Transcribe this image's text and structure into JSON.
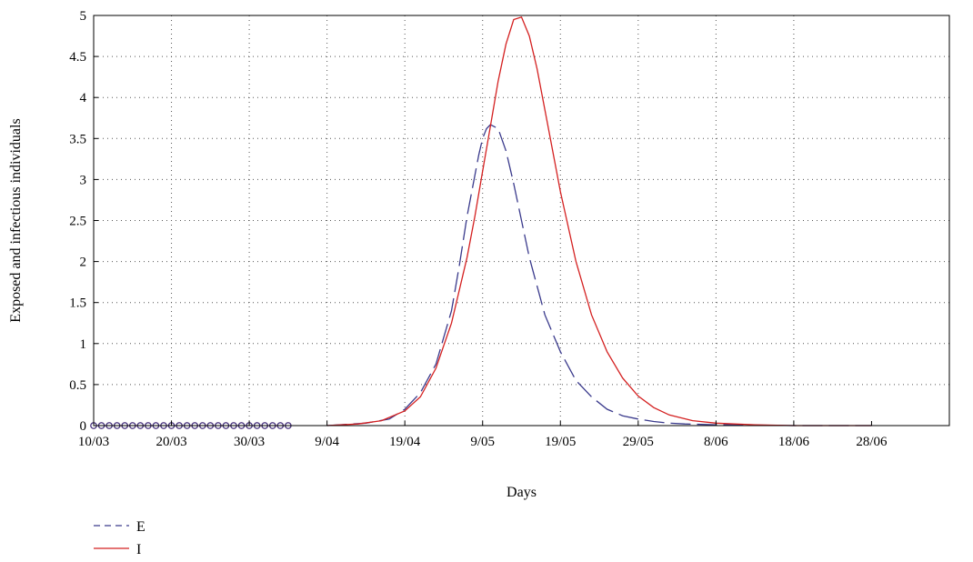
{
  "chart_data": {
    "type": "line",
    "xlabel": "Days",
    "ylabel": "Exposed and infectious individuals",
    "xlim": [
      0,
      110
    ],
    "ylim": [
      0,
      5
    ],
    "x_ticks": [
      {
        "x": 0,
        "label": "10/03"
      },
      {
        "x": 10,
        "label": "20/03"
      },
      {
        "x": 20,
        "label": "30/03"
      },
      {
        "x": 30,
        "label": "9/04"
      },
      {
        "x": 40,
        "label": "19/04"
      },
      {
        "x": 50,
        "label": "9/05"
      },
      {
        "x": 60,
        "label": "19/05"
      },
      {
        "x": 70,
        "label": "29/05"
      },
      {
        "x": 80,
        "label": "8/06"
      },
      {
        "x": 90,
        "label": "18/06"
      },
      {
        "x": 100,
        "label": "28/06"
      }
    ],
    "y_ticks": [
      {
        "y": 0,
        "label": "0"
      },
      {
        "y": 0.5,
        "label": "0.5"
      },
      {
        "y": 1,
        "label": "1"
      },
      {
        "y": 1.5,
        "label": "1.5"
      },
      {
        "y": 2,
        "label": "2"
      },
      {
        "y": 2.5,
        "label": "2.5"
      },
      {
        "y": 3,
        "label": "3"
      },
      {
        "y": 3.5,
        "label": "3.5"
      },
      {
        "y": 4,
        "label": "4"
      },
      {
        "y": 4.5,
        "label": "4.5"
      },
      {
        "y": 5,
        "label": "5"
      }
    ],
    "grid": true,
    "legend_position": "bottom-left",
    "series": [
      {
        "name": "E",
        "color": "#3a3a8c",
        "style": "dashed",
        "x": [
          30,
          35,
          38,
          40,
          42,
          44,
          46,
          47,
          48,
          49,
          49.5,
          50,
          50.5,
          51,
          52,
          53,
          54,
          56,
          58,
          60,
          62,
          64,
          66,
          68,
          70,
          72,
          74,
          76,
          80,
          85,
          90,
          95,
          100
        ],
        "y": [
          0.0,
          0.03,
          0.08,
          0.2,
          0.4,
          0.75,
          1.4,
          1.95,
          2.55,
          3.05,
          3.3,
          3.5,
          3.62,
          3.67,
          3.62,
          3.35,
          2.95,
          2.05,
          1.35,
          0.9,
          0.55,
          0.35,
          0.2,
          0.12,
          0.08,
          0.05,
          0.03,
          0.02,
          0.01,
          0.005,
          0.0,
          0.0,
          0.0
        ]
      },
      {
        "name": "I",
        "color": "#d42020",
        "style": "solid",
        "x": [
          30,
          34,
          37,
          40,
          42,
          44,
          46,
          48,
          49,
          50,
          51,
          52,
          53,
          54,
          55,
          56,
          57,
          58,
          60,
          62,
          64,
          66,
          68,
          70,
          72,
          74,
          77,
          80,
          85,
          90,
          95,
          100
        ],
        "y": [
          0.0,
          0.02,
          0.06,
          0.18,
          0.35,
          0.7,
          1.25,
          2.05,
          2.55,
          3.1,
          3.65,
          4.2,
          4.65,
          4.95,
          4.98,
          4.75,
          4.35,
          3.85,
          2.85,
          2.0,
          1.35,
          0.9,
          0.58,
          0.36,
          0.22,
          0.13,
          0.06,
          0.03,
          0.01,
          0.0,
          0.0,
          0.0
        ]
      },
      {
        "name": "",
        "color": "#d42020",
        "style": "markers",
        "x": [
          0,
          1,
          2,
          3,
          4,
          5,
          6,
          7,
          8,
          9,
          10,
          11,
          12,
          13,
          14,
          15,
          16,
          17,
          18,
          19,
          20,
          21,
          22,
          23,
          24,
          25
        ],
        "y": [
          0,
          0,
          0,
          0,
          0,
          0,
          0,
          0,
          0,
          0,
          0,
          0,
          0,
          0,
          0,
          0,
          0,
          0,
          0,
          0,
          0,
          0,
          0,
          0,
          0,
          0
        ]
      },
      {
        "name": "",
        "color": "#3a3a8c",
        "style": "markers",
        "x": [
          0,
          1,
          2,
          3,
          4,
          5,
          6,
          7,
          8,
          9,
          10,
          11,
          12,
          13,
          14,
          15,
          16,
          17,
          18,
          19,
          20,
          21,
          22,
          23,
          24,
          25
        ],
        "y": [
          0,
          0,
          0,
          0,
          0,
          0,
          0,
          0,
          0,
          0,
          0,
          0,
          0,
          0,
          0,
          0,
          0,
          0,
          0,
          0,
          0,
          0,
          0,
          0,
          0,
          0
        ]
      }
    ]
  }
}
